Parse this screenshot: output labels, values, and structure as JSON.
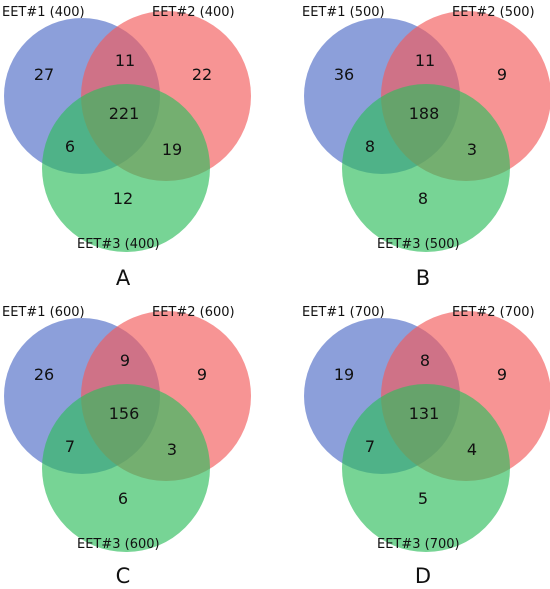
{
  "colors": {
    "set1": "#4f6cc6",
    "set2": "#f25b5b",
    "set3": "#2ebd5c"
  },
  "panels": [
    {
      "label": "A",
      "sets": [
        "EET#1 (400)",
        "EET#2 (400)",
        "EET#3 (400)"
      ],
      "regions": {
        "only1": "27",
        "only2": "22",
        "only3": "12",
        "s12": "11",
        "s13": "6",
        "s23": "19",
        "all": "221"
      }
    },
    {
      "label": "B",
      "sets": [
        "EET#1 (500)",
        "EET#2 (500)",
        "EET#3 (500)"
      ],
      "regions": {
        "only1": "36",
        "only2": "9",
        "only3": "8",
        "s12": "11",
        "s13": "8",
        "s23": "3",
        "all": "188"
      }
    },
    {
      "label": "C",
      "sets": [
        "EET#1 (600)",
        "EET#2 (600)",
        "EET#3 (600)"
      ],
      "regions": {
        "only1": "26",
        "only2": "9",
        "only3": "6",
        "s12": "9",
        "s13": "7",
        "s23": "3",
        "all": "156"
      }
    },
    {
      "label": "D",
      "sets": [
        "EET#1 (700)",
        "EET#2 (700)",
        "EET#3 (700)"
      ],
      "regions": {
        "only1": "19",
        "only2": "9",
        "only3": "5",
        "s12": "8",
        "s13": "7",
        "s23": "4",
        "all": "131"
      }
    }
  ]
}
